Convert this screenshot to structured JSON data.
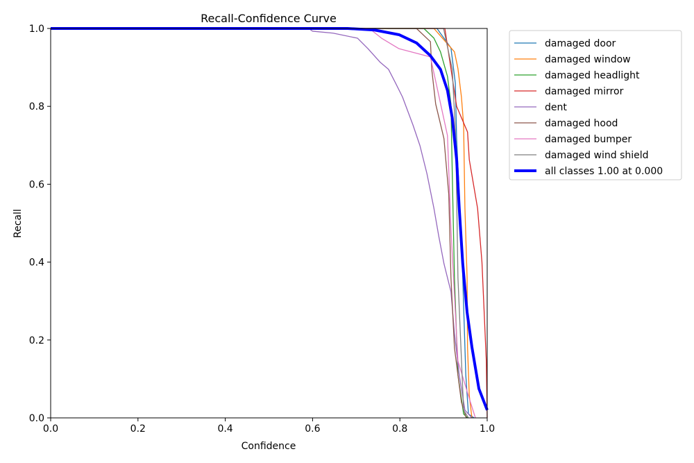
{
  "chart_data": {
    "type": "line",
    "title": "Recall-Confidence Curve",
    "xlabel": "Confidence",
    "ylabel": "Recall",
    "xlim": [
      0,
      1
    ],
    "ylim": [
      0,
      1
    ],
    "xticks": [
      "0.0",
      "0.2",
      "0.4",
      "0.6",
      "0.8",
      "1.0"
    ],
    "yticks": [
      "0.0",
      "0.2",
      "0.4",
      "0.6",
      "0.8",
      "1.0"
    ],
    "grid": false,
    "legend_placement": "outside-top-right",
    "series": [
      {
        "name": "damaged door",
        "color": "#1f77b4",
        "width": 1.3,
        "points": [
          [
            0,
            1
          ],
          [
            0.885,
            1
          ],
          [
            0.917,
            0.95
          ],
          [
            0.927,
            0.86
          ],
          [
            0.93,
            0.717
          ],
          [
            0.936,
            0.574
          ],
          [
            0.944,
            0.36
          ],
          [
            0.951,
            0.11
          ],
          [
            0.957,
            0.01
          ],
          [
            0.97,
            0
          ]
        ]
      },
      {
        "name": "damaged window",
        "color": "#ff7f0e",
        "width": 1.3,
        "points": [
          [
            0,
            1
          ],
          [
            0.878,
            1
          ],
          [
            0.925,
            0.94
          ],
          [
            0.933,
            0.897
          ],
          [
            0.941,
            0.824
          ],
          [
            0.946,
            0.752
          ],
          [
            0.949,
            0.538
          ],
          [
            0.954,
            0.36
          ],
          [
            0.955,
            0.18
          ],
          [
            0.959,
            0.057
          ],
          [
            0.965,
            0
          ]
        ]
      },
      {
        "name": "damaged headlight",
        "color": "#2ca02c",
        "width": 1.3,
        "points": [
          [
            0,
            1
          ],
          [
            0.855,
            1
          ],
          [
            0.878,
            0.975
          ],
          [
            0.893,
            0.94
          ],
          [
            0.909,
            0.877
          ],
          [
            0.917,
            0.806
          ],
          [
            0.92,
            0.627
          ],
          [
            0.925,
            0.36
          ],
          [
            0.933,
            0.11
          ],
          [
            0.946,
            0.01
          ],
          [
            0.955,
            0
          ]
        ]
      },
      {
        "name": "damaged mirror",
        "color": "#d62728",
        "width": 1.3,
        "points": [
          [
            0,
            1
          ],
          [
            0.903,
            1
          ],
          [
            0.93,
            0.8
          ],
          [
            0.955,
            0.734
          ],
          [
            0.959,
            0.663
          ],
          [
            0.978,
            0.538
          ],
          [
            0.988,
            0.4
          ],
          [
            0.998,
            0.146
          ],
          [
            1.0,
            0
          ]
        ]
      },
      {
        "name": "dent",
        "color": "#9467bd",
        "width": 1.3,
        "points": [
          [
            0,
            1
          ],
          [
            0.591,
            1
          ],
          [
            0.6,
            0.993
          ],
          [
            0.647,
            0.988
          ],
          [
            0.703,
            0.975
          ],
          [
            0.727,
            0.948
          ],
          [
            0.755,
            0.913
          ],
          [
            0.774,
            0.895
          ],
          [
            0.79,
            0.86
          ],
          [
            0.806,
            0.824
          ],
          [
            0.83,
            0.752
          ],
          [
            0.846,
            0.699
          ],
          [
            0.862,
            0.627
          ],
          [
            0.878,
            0.538
          ],
          [
            0.889,
            0.467
          ],
          [
            0.901,
            0.396
          ],
          [
            0.917,
            0.324
          ],
          [
            0.925,
            0.217
          ],
          [
            0.936,
            0.11
          ],
          [
            0.949,
            0.02
          ],
          [
            0.965,
            0
          ]
        ]
      },
      {
        "name": "damaged hood",
        "color": "#8c564b",
        "width": 1.3,
        "points": [
          [
            0,
            1
          ],
          [
            0.838,
            1
          ],
          [
            0.87,
            0.966
          ],
          [
            0.873,
            0.895
          ],
          [
            0.882,
            0.806
          ],
          [
            0.901,
            0.717
          ],
          [
            0.912,
            0.574
          ],
          [
            0.917,
            0.36
          ],
          [
            0.925,
            0.18
          ],
          [
            0.941,
            0.04
          ],
          [
            0.952,
            0
          ]
        ]
      },
      {
        "name": "damaged bumper",
        "color": "#e377c2",
        "width": 1.3,
        "points": [
          [
            0,
            1
          ],
          [
            0.73,
            1
          ],
          [
            0.758,
            0.975
          ],
          [
            0.798,
            0.948
          ],
          [
            0.87,
            0.927
          ],
          [
            0.909,
            0.725
          ],
          [
            0.917,
            0.485
          ],
          [
            0.933,
            0.146
          ],
          [
            0.957,
            0.057
          ],
          [
            0.973,
            0
          ]
        ]
      },
      {
        "name": "damaged wind shield",
        "color": "#7f7f7f",
        "width": 1.3,
        "points": [
          [
            0,
            1
          ],
          [
            0.9,
            1
          ],
          [
            0.92,
            0.895
          ],
          [
            0.928,
            0.717
          ],
          [
            0.933,
            0.36
          ],
          [
            0.946,
            0.02
          ],
          [
            0.957,
            0
          ]
        ]
      },
      {
        "name": "all classes 1.00 at 0.000",
        "color": "#0000ff",
        "width": 4,
        "points": [
          [
            0,
            1
          ],
          [
            0.68,
            1
          ],
          [
            0.742,
            0.996
          ],
          [
            0.798,
            0.984
          ],
          [
            0.838,
            0.963
          ],
          [
            0.87,
            0.93
          ],
          [
            0.893,
            0.895
          ],
          [
            0.909,
            0.841
          ],
          [
            0.92,
            0.77
          ],
          [
            0.93,
            0.663
          ],
          [
            0.936,
            0.538
          ],
          [
            0.944,
            0.396
          ],
          [
            0.954,
            0.271
          ],
          [
            0.965,
            0.182
          ],
          [
            0.981,
            0.075
          ],
          [
            1.0,
            0.02
          ]
        ]
      }
    ]
  }
}
